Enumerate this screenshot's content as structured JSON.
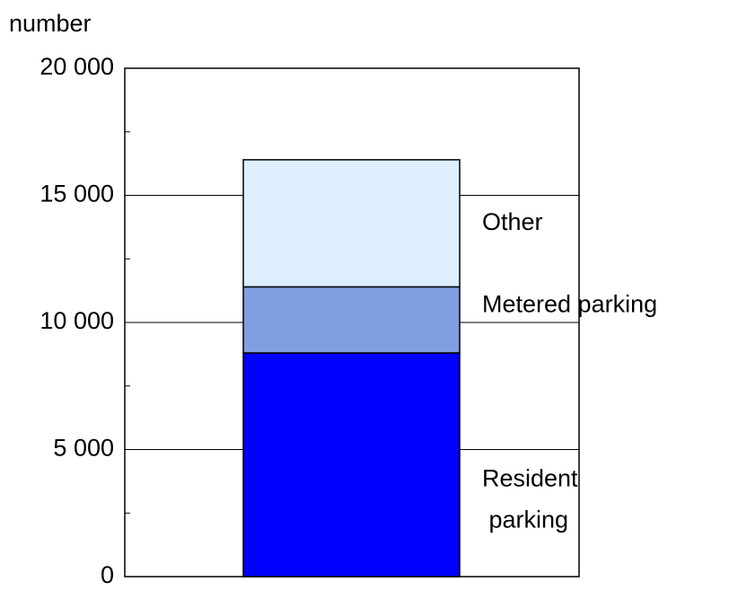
{
  "chart_data": {
    "type": "stacked_bar",
    "y_label": "number",
    "categories": [
      null
    ],
    "series": [
      {
        "name": "Resident parking",
        "color": "#0000ff",
        "values": [
          8800
        ]
      },
      {
        "name": "Metered parking",
        "color": "#7f9fe0",
        "values": [
          2600
        ]
      },
      {
        "name": "Other",
        "color": "#ddeeff",
        "values": [
          5000
        ]
      }
    ],
    "ylim": [
      0,
      20000
    ],
    "yticks": [
      0,
      {
        "value": 5000,
        "label": "5 000"
      },
      {
        "value": 10000,
        "label": "10 000"
      },
      {
        "value": 15000,
        "label": "15 000"
      },
      {
        "value": 20000,
        "label": "20 000"
      }
    ],
    "minor_yticks": [
      2500,
      7500,
      12500,
      17500
    ],
    "grid": true
  }
}
